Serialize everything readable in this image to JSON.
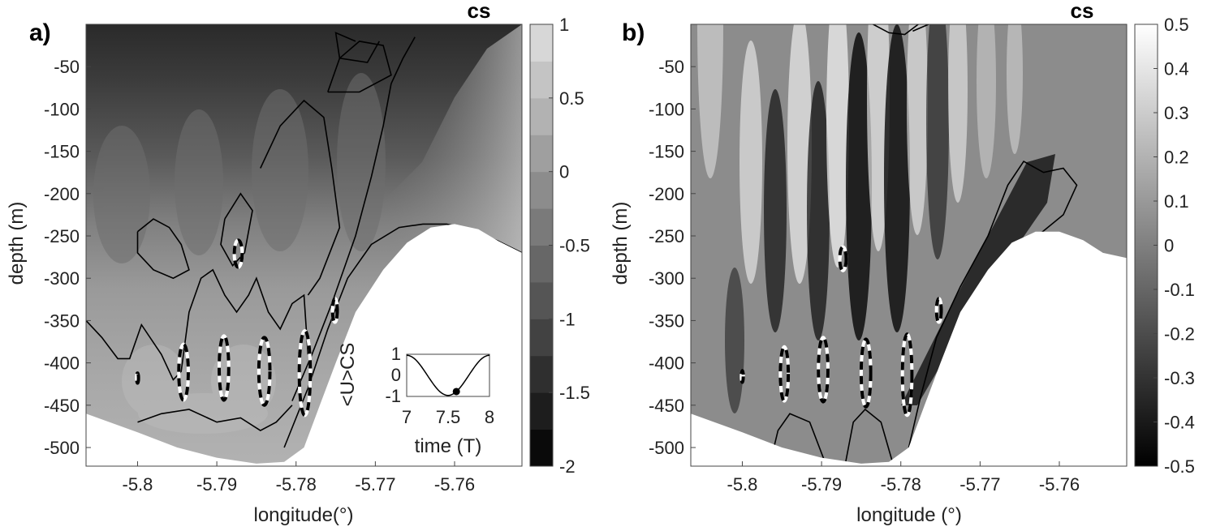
{
  "chart_data": [
    {
      "type": "heatmap",
      "panel_label": "a)",
      "title": "cs",
      "xlabel": "longitude(°)",
      "ylabel": "depth (m)",
      "xlim": [
        -5.8065,
        -5.7515
      ],
      "ylim": [
        -522,
        0
      ],
      "xticks": [
        -5.8,
        -5.79,
        -5.78,
        -5.77,
        -5.76
      ],
      "xtick_labels": [
        "-5.8",
        "-5.79",
        "-5.78",
        "-5.77",
        "-5.76"
      ],
      "yticks": [
        -50,
        -100,
        -150,
        -200,
        -250,
        -300,
        -350,
        -400,
        -450,
        -500
      ],
      "ytick_labels": [
        "-50",
        "-100",
        "-150",
        "-200",
        "-250",
        "-300",
        "-350",
        "-400",
        "-450",
        "-500"
      ],
      "colorbar": {
        "min": -2,
        "max": 1,
        "ticks": [
          1,
          0.5,
          0,
          -0.5,
          -1,
          -1.5,
          -2
        ],
        "tick_labels": [
          "1",
          "0.5",
          "0",
          "-0.5",
          "-1",
          "-1.5",
          "-2"
        ],
        "discrete_levels": 12
      },
      "bathymetry": [
        [
          -5.8065,
          -460
        ],
        [
          -5.8,
          -482
        ],
        [
          -5.795,
          -500
        ],
        [
          -5.79,
          -512
        ],
        [
          -5.785,
          -519
        ],
        [
          -5.7815,
          -517
        ],
        [
          -5.779,
          -500
        ],
        [
          -5.777,
          -450
        ],
        [
          -5.775,
          -400
        ],
        [
          -5.7725,
          -340
        ],
        [
          -5.769,
          -290
        ],
        [
          -5.766,
          -258
        ],
        [
          -5.763,
          -240
        ],
        [
          -5.76,
          -236
        ],
        [
          -5.757,
          -242
        ],
        [
          -5.7545,
          -256
        ],
        [
          -5.7515,
          -270
        ]
      ],
      "contours": [
        [
          [
            -5.7815,
            -500
          ],
          [
            -5.7785,
            -430
          ],
          [
            -5.776,
            -360
          ],
          [
            -5.7735,
            -300
          ],
          [
            -5.7705,
            -260
          ],
          [
            -5.767,
            -240
          ],
          [
            -5.764,
            -236
          ],
          [
            -5.761,
            -236
          ],
          [
            -5.758,
            -242
          ],
          [
            -5.7545,
            -256
          ],
          [
            -5.7515,
            -270
          ]
        ],
        [
          [
            -5.7805,
            -445
          ],
          [
            -5.778,
            -390
          ],
          [
            -5.7755,
            -330
          ],
          [
            -5.7725,
            -250
          ],
          [
            -5.7705,
            -180
          ],
          [
            -5.769,
            -120
          ],
          [
            -5.768,
            -70
          ],
          [
            -5.7665,
            -40
          ],
          [
            -5.765,
            -15
          ]
        ],
        [
          [
            -5.776,
            -80
          ],
          [
            -5.7745,
            -40
          ],
          [
            -5.772,
            -20
          ],
          [
            -5.769,
            -25
          ],
          [
            -5.768,
            -60
          ],
          [
            -5.772,
            -80
          ],
          [
            -5.776,
            -80
          ]
        ],
        [
          [
            -5.8065,
            -350
          ],
          [
            -5.8045,
            -370
          ],
          [
            -5.8025,
            -395
          ],
          [
            -5.801,
            -395
          ],
          [
            -5.7995,
            -355
          ],
          [
            -5.797,
            -390
          ],
          [
            -5.7955,
            -420
          ],
          [
            -5.7945,
            -410
          ],
          [
            -5.7935,
            -340
          ],
          [
            -5.792,
            -300
          ],
          [
            -5.7905,
            -290
          ],
          [
            -5.789,
            -320
          ],
          [
            -5.7875,
            -340
          ],
          [
            -5.786,
            -320
          ],
          [
            -5.785,
            -300
          ],
          [
            -5.7835,
            -340
          ],
          [
            -5.782,
            -360
          ],
          [
            -5.7805,
            -330
          ],
          [
            -5.779,
            -320
          ],
          [
            -5.7785,
            -390
          ]
        ],
        [
          [
            -5.8,
            -470
          ],
          [
            -5.797,
            -460
          ],
          [
            -5.7935,
            -455
          ],
          [
            -5.79,
            -470
          ],
          [
            -5.787,
            -465
          ],
          [
            -5.7845,
            -480
          ],
          [
            -5.7825,
            -470
          ],
          [
            -5.7805,
            -450
          ]
        ],
        [
          [
            -5.8,
            -245
          ],
          [
            -5.798,
            -230
          ],
          [
            -5.796,
            -240
          ],
          [
            -5.7945,
            -260
          ],
          [
            -5.7935,
            -290
          ],
          [
            -5.7955,
            -300
          ],
          [
            -5.798,
            -290
          ],
          [
            -5.8,
            -270
          ],
          [
            -5.8,
            -245
          ]
        ],
        [
          [
            -5.789,
            -230
          ],
          [
            -5.787,
            -200
          ],
          [
            -5.7855,
            -220
          ],
          [
            -5.7865,
            -270
          ],
          [
            -5.788,
            -285
          ],
          [
            -5.7895,
            -260
          ],
          [
            -5.789,
            -230
          ]
        ],
        [
          [
            -5.7845,
            -170
          ],
          [
            -5.782,
            -120
          ],
          [
            -5.779,
            -90
          ],
          [
            -5.7765,
            -110
          ],
          [
            -5.7755,
            -170
          ],
          [
            -5.7745,
            -240
          ],
          [
            -5.777,
            -300
          ],
          [
            -5.7785,
            -320
          ]
        ],
        [
          [
            -5.7725,
            -20
          ],
          [
            -5.775,
            -10
          ],
          [
            -5.7745,
            -40
          ],
          [
            -5.771,
            -45
          ],
          [
            -5.7695,
            -20
          ]
        ]
      ],
      "ellipses": [
        [
          -5.7873,
          -271,
          0.0005,
          16
        ],
        [
          -5.7942,
          -411,
          0.0006,
          33
        ],
        [
          -5.7891,
          -406,
          0.0006,
          38
        ],
        [
          -5.784,
          -410,
          0.0007,
          40
        ],
        [
          -5.7789,
          -412,
          0.0007,
          50
        ],
        [
          -5.7751,
          -338,
          0.0003,
          14
        ],
        [
          -5.8,
          -418,
          0.00012,
          6
        ]
      ],
      "inset": {
        "xlabel": "time (T)",
        "ylabel": "<U>CS",
        "xlim": [
          7,
          8
        ],
        "ylim": [
          -1,
          1
        ],
        "xtick_labels": [
          "7",
          "7.5",
          "8"
        ],
        "ytick_labels": [
          "1",
          "0",
          "-1"
        ],
        "marker_time": 7.6
      }
    },
    {
      "type": "heatmap",
      "panel_label": "b)",
      "title": "cs",
      "xlabel": "longitude (°)",
      "ylabel": "depth (m)",
      "xlim": [
        -5.8065,
        -5.7515
      ],
      "ylim": [
        -522,
        0
      ],
      "xticks": [
        -5.8,
        -5.79,
        -5.78,
        -5.77,
        -5.76
      ],
      "xtick_labels": [
        "-5.8",
        "-5.79",
        "-5.78",
        "-5.77",
        "-5.76"
      ],
      "yticks": [
        -50,
        -100,
        -150,
        -200,
        -250,
        -300,
        -350,
        -400,
        -450,
        -500
      ],
      "ytick_labels": [
        "-50",
        "-100",
        "-150",
        "-200",
        "-250",
        "-300",
        "-350",
        "-400",
        "-450",
        "-500"
      ],
      "colorbar": {
        "min": -0.5,
        "max": 0.5,
        "ticks": [
          0.5,
          0.4,
          0.3,
          0.2,
          0.1,
          0,
          -0.1,
          -0.2,
          -0.3,
          -0.4,
          -0.5
        ],
        "tick_labels": [
          "0.5",
          "0.4",
          "0.3",
          "0.2",
          "0.1",
          "0",
          "-0.1",
          "-0.2",
          "-0.3",
          "-0.4",
          "-0.5"
        ]
      },
      "bathymetry": [
        [
          -5.8065,
          -460
        ],
        [
          -5.8,
          -482
        ],
        [
          -5.795,
          -500
        ],
        [
          -5.79,
          -512
        ],
        [
          -5.785,
          -519
        ],
        [
          -5.7815,
          -517
        ],
        [
          -5.779,
          -500
        ],
        [
          -5.777,
          -450
        ],
        [
          -5.775,
          -400
        ],
        [
          -5.7725,
          -340
        ],
        [
          -5.769,
          -290
        ],
        [
          -5.766,
          -258
        ],
        [
          -5.763,
          -245
        ],
        [
          -5.76,
          -245
        ],
        [
          -5.757,
          -255
        ],
        [
          -5.7545,
          -270
        ],
        [
          -5.7515,
          -276
        ]
      ],
      "contours": [
        [
          [
            -5.779,
            -500
          ],
          [
            -5.7775,
            -440
          ],
          [
            -5.7755,
            -370
          ],
          [
            -5.7725,
            -310
          ],
          [
            -5.769,
            -250
          ],
          [
            -5.7665,
            -190
          ],
          [
            -5.7645,
            -162
          ],
          [
            -5.762,
            -175
          ],
          [
            -5.7595,
            -170
          ],
          [
            -5.7578,
            -190
          ],
          [
            -5.7595,
            -225
          ],
          [
            -5.7625,
            -248
          ]
        ],
        [
          [
            -5.7785,
            -8
          ],
          [
            -5.7765,
            0
          ]
        ],
        [
          [
            -5.7835,
            0
          ],
          [
            -5.7815,
            -10
          ],
          [
            -5.7795,
            -12
          ],
          [
            -5.7778,
            0
          ]
        ],
        [
          [
            -5.8015,
            -519
          ],
          [
            -5.8005,
            -495
          ],
          [
            -5.7985,
            -520
          ]
        ],
        [
          [
            -5.7965,
            -519
          ],
          [
            -5.7955,
            -480
          ],
          [
            -5.794,
            -460
          ],
          [
            -5.7915,
            -470
          ],
          [
            -5.7895,
            -519
          ]
        ],
        [
          [
            -5.787,
            -519
          ],
          [
            -5.786,
            -470
          ],
          [
            -5.7845,
            -455
          ],
          [
            -5.7825,
            -470
          ],
          [
            -5.781,
            -519
          ]
        ]
      ],
      "ellipses": [
        [
          -5.7873,
          -277,
          0.0004,
          14
        ],
        [
          -5.7947,
          -413,
          0.0005,
          32
        ],
        [
          -5.7898,
          -408,
          0.0006,
          38
        ],
        [
          -5.7844,
          -412,
          0.0006,
          40
        ],
        [
          -5.7792,
          -414,
          0.0006,
          48
        ],
        [
          -5.7752,
          -338,
          0.0003,
          14
        ],
        [
          -5.8,
          -416,
          0.00012,
          7
        ]
      ]
    }
  ]
}
